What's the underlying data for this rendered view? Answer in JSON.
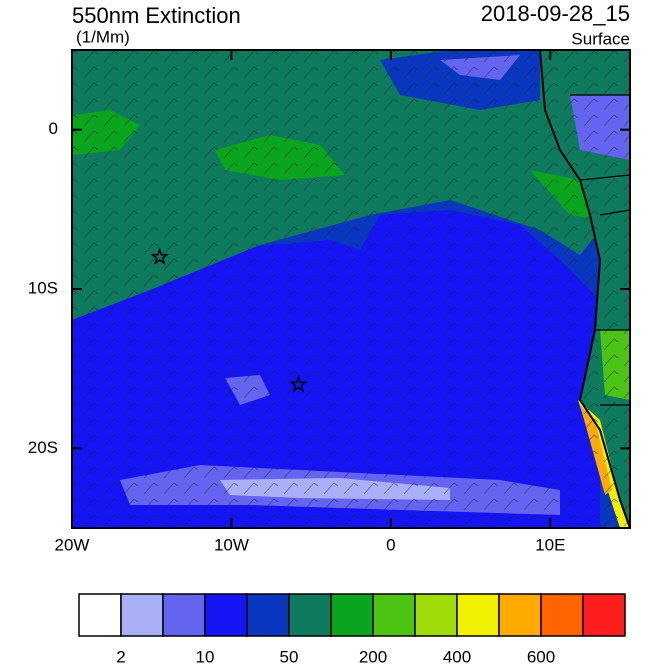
{
  "map": {
    "title": "550nm Extinction",
    "units": "(1/Mm)",
    "date": "2018-09-28_15",
    "level": "Surface",
    "lonlim": [
      -20,
      15
    ],
    "latlim": [
      -25,
      5
    ],
    "lon_ticks": [
      {
        "value": -20,
        "label": "20W"
      },
      {
        "value": -10,
        "label": "10W"
      },
      {
        "value": 0,
        "label": "0"
      },
      {
        "value": 10,
        "label": "10E"
      }
    ],
    "lat_ticks": [
      {
        "value": 0,
        "label": "0"
      },
      {
        "value": -10,
        "label": "10S"
      },
      {
        "value": -20,
        "label": "20S"
      }
    ],
    "colorbar": {
      "colors": [
        "#ffffff",
        "#aab0f8",
        "#6464f0",
        "#1414f5",
        "#0a37c0",
        "#0e7a5e",
        "#0aa51e",
        "#4cc414",
        "#a0dc0a",
        "#f0f000",
        "#ffaa00",
        "#ff6400",
        "#ff1e1e"
      ],
      "labels": [
        "2",
        "10",
        "50",
        "200",
        "400",
        "600"
      ]
    },
    "stations": [
      {
        "lon": -14.5,
        "lat": -8
      },
      {
        "lon": -5.8,
        "lat": -16
      }
    ]
  }
}
